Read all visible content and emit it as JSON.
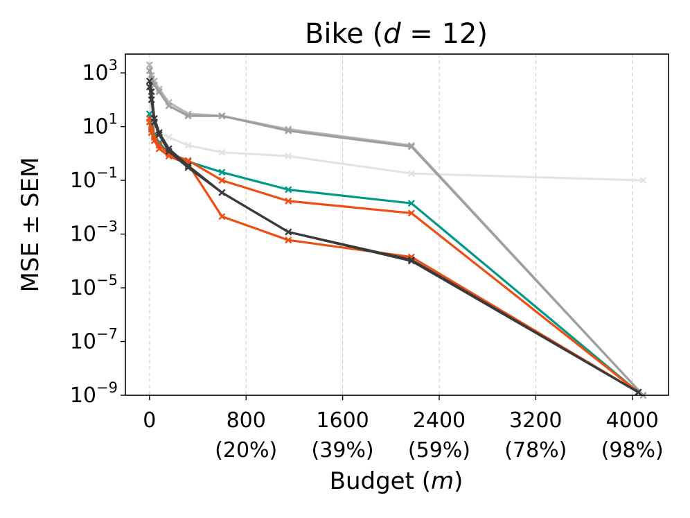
{
  "chart_data": {
    "type": "line",
    "title_main": "Bike (",
    "title_var": "d",
    "title_rest": " = 12)",
    "xlabel_main": "Budget (",
    "xlabel_var": "m",
    "xlabel_rest": ")",
    "ylabel": "MSE ± SEM",
    "y_scale": "log",
    "xlim": [
      -200,
      4300
    ],
    "ylim_exp": [
      -9,
      3.7
    ],
    "grid": "x-dashed",
    "x_ticks": [
      {
        "value": 0,
        "label": "0",
        "sub": ""
      },
      {
        "value": 800,
        "label": "800",
        "sub": "(20%)"
      },
      {
        "value": 1600,
        "label": "1600",
        "sub": "(39%)"
      },
      {
        "value": 2400,
        "label": "2400",
        "sub": "(59%)"
      },
      {
        "value": 3200,
        "label": "3200",
        "sub": "(78%)"
      },
      {
        "value": 4000,
        "label": "4000",
        "sub": "(98%)"
      }
    ],
    "y_ticks": [
      {
        "exp": 3,
        "base": "10",
        "sup": "3"
      },
      {
        "exp": 1,
        "base": "10",
        "sup": "1"
      },
      {
        "exp": -1,
        "base": "10",
        "sup": "−1"
      },
      {
        "exp": -3,
        "base": "10",
        "sup": "−3"
      },
      {
        "exp": -5,
        "base": "10",
        "sup": "−5"
      },
      {
        "exp": -7,
        "base": "10",
        "sup": "−7"
      },
      {
        "exp": -9,
        "base": "10",
        "sup": "−9"
      }
    ],
    "series": [
      {
        "name": "gray-light",
        "color": "#e3e3e3",
        "x": [
          0,
          16,
          40,
          80,
          160,
          320,
          600,
          1150,
          2170,
          4090
        ],
        "y": [
          300,
          40,
          12,
          6,
          4,
          2,
          1.1,
          0.8,
          0.18,
          0.1
        ]
      },
      {
        "name": "gray-mid-1",
        "color": "#b5b5b5",
        "x": [
          0,
          16,
          40,
          80,
          160,
          320,
          600,
          1150,
          2170,
          4090
        ],
        "y": [
          2000,
          800,
          500,
          250,
          80,
          30,
          25,
          8,
          2,
          1e-09
        ]
      },
      {
        "name": "gray-mid-2",
        "color": "#9e9e9e",
        "x": [
          0,
          16,
          40,
          80,
          160,
          320,
          600,
          1150,
          2170,
          4090
        ],
        "y": [
          1200,
          600,
          350,
          200,
          60,
          25,
          25,
          7,
          1.8,
          1e-09
        ]
      },
      {
        "name": "teal",
        "color": "#009988",
        "x": [
          0,
          16,
          40,
          80,
          160,
          320,
          600,
          1150,
          2170,
          4050
        ],
        "y": [
          30,
          10,
          5,
          2.5,
          1.0,
          0.5,
          0.2,
          0.045,
          0.014,
          1.3e-09
        ]
      },
      {
        "name": "orange-1",
        "color": "#ee4e14",
        "x": [
          0,
          16,
          40,
          80,
          160,
          320,
          600,
          1150,
          2170,
          4050
        ],
        "y": [
          20,
          8,
          4,
          2,
          1.0,
          0.55,
          0.1,
          0.017,
          0.006,
          1.3e-09
        ]
      },
      {
        "name": "orange-2",
        "color": "#ee4e14",
        "x": [
          0,
          16,
          40,
          80,
          160,
          320,
          600,
          1150,
          2170,
          4050
        ],
        "y": [
          15,
          6,
          3,
          1.5,
          0.8,
          0.4,
          0.0045,
          0.0006,
          0.00014,
          1.3e-09
        ]
      },
      {
        "name": "dark-1",
        "color": "#3a3a3a",
        "x": [
          0,
          16,
          40,
          80,
          160,
          320,
          600,
          1150,
          2170,
          4050
        ],
        "y": [
          500,
          200,
          20,
          6,
          1.5,
          0.35,
          0.035,
          0.0012,
          0.0001,
          1.3e-09
        ]
      },
      {
        "name": "dark-2",
        "color": "#3a3a3a",
        "x": [
          0,
          16,
          40,
          80,
          160,
          320,
          600,
          1150,
          2170,
          4050
        ],
        "y": [
          300,
          100,
          15,
          5,
          1.2,
          0.3,
          0.035,
          0.0012,
          0.00011,
          1.3e-09
        ]
      }
    ]
  }
}
